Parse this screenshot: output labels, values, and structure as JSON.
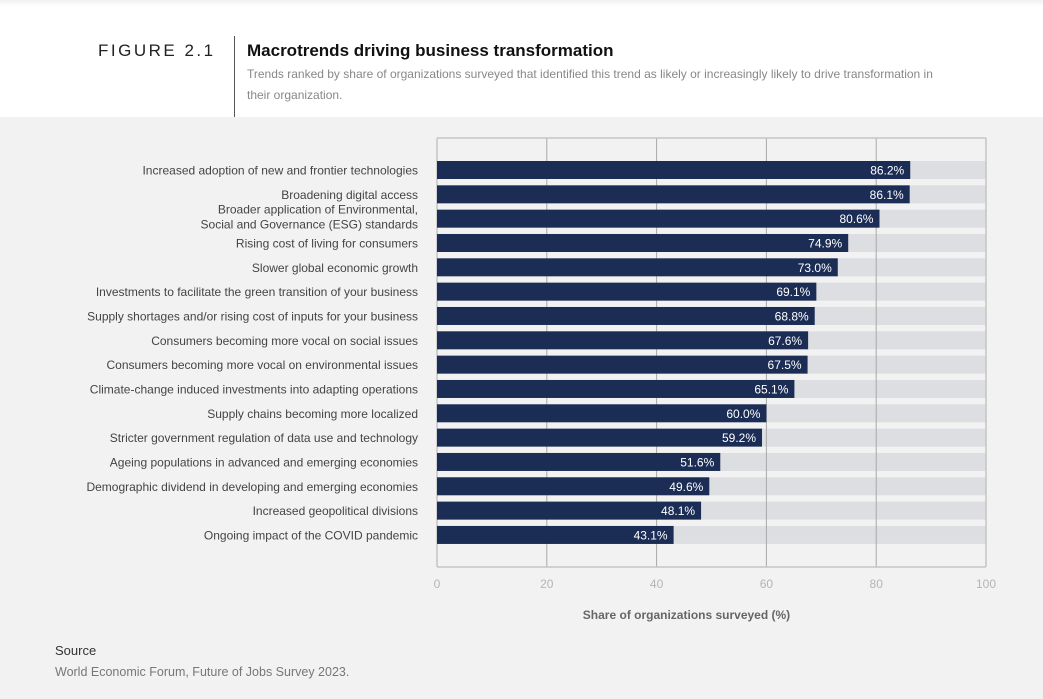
{
  "figure_label": "FIGURE 2.1",
  "title": "Macrotrends driving business transformation",
  "subtitle": "Trends ranked by share of organizations surveyed that identified this trend as likely or increasingly likely to drive transformation in their organization.",
  "source": {
    "heading": "Source",
    "text": "World Economic Forum, Future of Jobs Survey 2023."
  },
  "chart_data": {
    "type": "bar",
    "orientation": "horizontal",
    "xlabel": "Share of organizations surveyed (%)",
    "xlim": [
      0,
      100
    ],
    "xticks": [
      "0",
      "20",
      "40",
      "60",
      "80",
      "100"
    ],
    "grid": true,
    "bar_color": "#1b2d55",
    "track_color": "#dcdee2",
    "categories": [
      [
        "Increased adoption of new and frontier technologies"
      ],
      [
        "Broadening digital access"
      ],
      [
        "Broader application of Environmental,",
        "Social and Governance (ESG) standards"
      ],
      [
        "Rising cost of living for consumers"
      ],
      [
        "Slower global economic growth"
      ],
      [
        "Investments to facilitate the green transition of your business"
      ],
      [
        "Supply shortages and/or rising cost of inputs for your business"
      ],
      [
        "Consumers becoming more vocal on social issues"
      ],
      [
        "Consumers becoming more vocal on environmental issues"
      ],
      [
        "Climate-change induced investments into adapting operations"
      ],
      [
        "Supply chains becoming more localized"
      ],
      [
        "Stricter government regulation of data use and technology"
      ],
      [
        "Ageing populations in advanced and emerging economies"
      ],
      [
        "Demographic dividend in developing and emerging economies"
      ],
      [
        "Increased geopolitical divisions"
      ],
      [
        "Ongoing impact of the COVID pandemic"
      ]
    ],
    "values": [
      86.2,
      86.1,
      80.6,
      74.9,
      73.0,
      69.1,
      68.8,
      67.6,
      67.5,
      65.1,
      60.0,
      59.2,
      51.6,
      49.6,
      48.1,
      43.1
    ],
    "data_labels": [
      "86.2%",
      "86.1%",
      "80.6%",
      "74.9%",
      "73.0%",
      "69.1%",
      "68.8%",
      "67.6%",
      "67.5%",
      "65.1%",
      "60.0%",
      "59.2%",
      "51.6%",
      "49.6%",
      "48.1%",
      "43.1%"
    ]
  }
}
